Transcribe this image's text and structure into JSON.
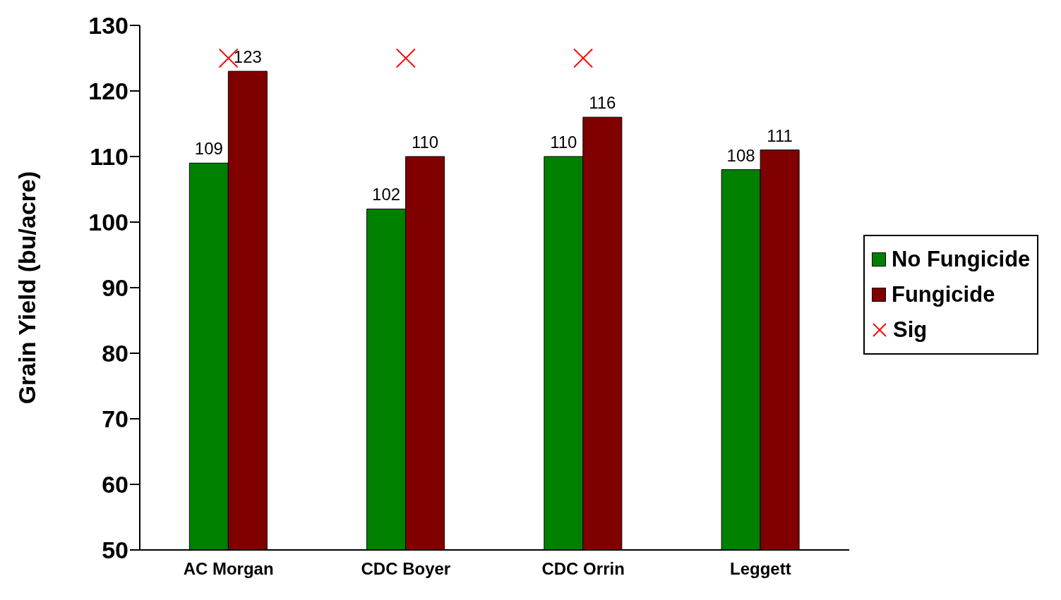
{
  "chart_data": {
    "type": "bar",
    "ylabel": "Grain Yield (bu/acre)",
    "categories": [
      "AC Morgan",
      "CDC Boyer",
      "CDC Orrin",
      "Leggett"
    ],
    "series": [
      {
        "name": "No Fungicide",
        "color": "#008000",
        "values": [
          109,
          102,
          110,
          108
        ],
        "value_labels": [
          "109",
          "102",
          "110",
          "108"
        ]
      },
      {
        "name": "Fungicide",
        "color": "#800000",
        "values": [
          123,
          110,
          116,
          111
        ],
        "value_labels": [
          "123",
          "110",
          "116",
          "111"
        ]
      },
      {
        "name": "Sig",
        "type": "scatter",
        "marker": "cross",
        "color": "#ff0000",
        "values": [
          125,
          125,
          125,
          null
        ]
      }
    ],
    "ylim": [
      50,
      130
    ],
    "yticks": [
      50,
      60,
      70,
      80,
      90,
      100,
      110,
      120,
      130
    ],
    "grid": false,
    "legend": "right"
  }
}
